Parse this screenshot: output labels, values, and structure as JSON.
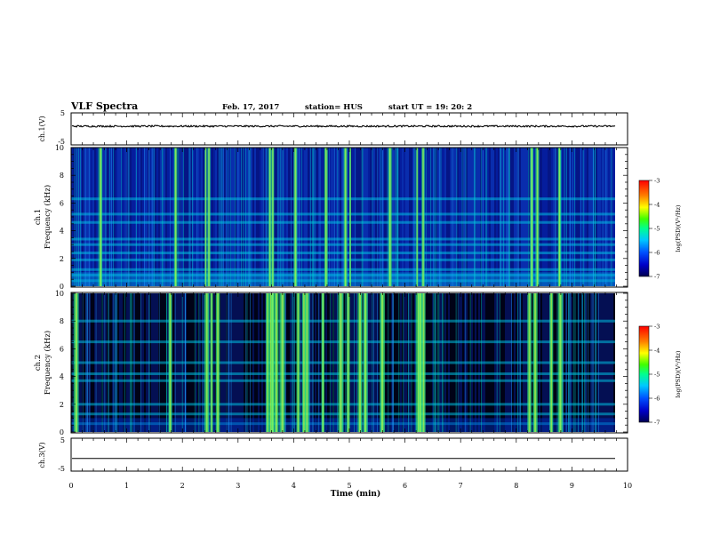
{
  "header": {
    "title": "VLF Spectra",
    "date": "Feb. 17, 2017",
    "station": "station= HUS",
    "start": "start  UT =   19: 20: 2"
  },
  "colors": {
    "background": "#ffffff",
    "spectrogram_low": "#000000",
    "spectrogram_noise": "#0030c0",
    "spectrogram_mid": "#00e0d0",
    "spectrogram_high": "#ffff00",
    "colorbar_top": "#ff0000"
  },
  "chart_data": [
    {
      "type": "line",
      "panel": "ch1-waveform",
      "ylabel": "ch.1(V)",
      "yticks": [
        "5",
        "-5"
      ],
      "ylim": [
        -5,
        5
      ],
      "xlim": [
        0,
        10
      ],
      "baseline": 0,
      "note_level": "near-constant noisy trace around 0 V"
    },
    {
      "type": "heatmap",
      "panel": "ch1-spectrogram",
      "ylabel": "ch.1 Frequency (kHz)",
      "ylabel_line1": "ch.1",
      "ylabel_line2": "Frequency (kHz)",
      "yticks": [
        "0",
        "2",
        "4",
        "6",
        "8",
        "10"
      ],
      "ylim": [
        0,
        10
      ],
      "xlim": [
        0,
        9.83
      ],
      "colorbar": {
        "label": "log(PSD)(V^2/Hz)",
        "label_display": "log(PSD)(V²/Hz)",
        "ticks": [
          "-3",
          "-4",
          "-5",
          "-6",
          "-7"
        ],
        "range": [
          -7,
          -3
        ]
      },
      "bright_bands_khz": [
        0.4,
        0.8,
        1.2,
        1.9,
        2.4,
        3.0,
        3.4,
        4.6,
        5.2,
        6.3
      ],
      "burst_times_min": [
        0.5,
        1.85,
        2.4,
        2.45,
        3.55,
        3.6,
        4.0,
        4.55,
        4.9,
        5.0,
        5.7,
        6.2,
        6.3,
        8.25,
        8.35,
        8.75
      ]
    },
    {
      "type": "heatmap",
      "panel": "ch2-spectrogram",
      "ylabel": "ch.2 Frequency (kHz)",
      "ylabel_line1": "ch.2",
      "ylabel_line2": "Frequency (kHz)",
      "yticks": [
        "0",
        "2",
        "4",
        "6",
        "8",
        "10"
      ],
      "ylim": [
        0,
        10
      ],
      "xlim": [
        0,
        9.83
      ],
      "colorbar": {
        "label": "log(PSD)(V^2/Hz)",
        "label_display": "log(PSD)(V²/Hz)",
        "ticks": [
          "-3",
          "-4",
          "-5",
          "-6",
          "-7"
        ],
        "range": [
          -7,
          -3
        ]
      },
      "bright_bands_khz": [
        0.6,
        1.3,
        2.0,
        3.7,
        4.2,
        5.0,
        6.5,
        8.0
      ],
      "burst_times_min": [
        0.05,
        1.75,
        2.4,
        2.5,
        2.6,
        3.5,
        3.55,
        3.6,
        3.65,
        3.75,
        4.05,
        4.15,
        4.2,
        4.5,
        4.8,
        4.95,
        5.15,
        5.25,
        5.55,
        6.2,
        6.25,
        6.3,
        8.2,
        8.3,
        8.6,
        8.75
      ]
    },
    {
      "type": "line",
      "panel": "ch3-waveform",
      "ylabel": "ch.3(V)",
      "yticks": [
        "5",
        "-5"
      ],
      "ylim": [
        -5,
        5
      ],
      "xlim": [
        0,
        10
      ],
      "baseline": -1.5
    }
  ],
  "xaxis": {
    "label": "Time (min)",
    "ticks": [
      "0",
      "1",
      "2",
      "3",
      "4",
      "5",
      "6",
      "7",
      "8",
      "9",
      "10"
    ],
    "range": [
      0,
      10
    ]
  }
}
